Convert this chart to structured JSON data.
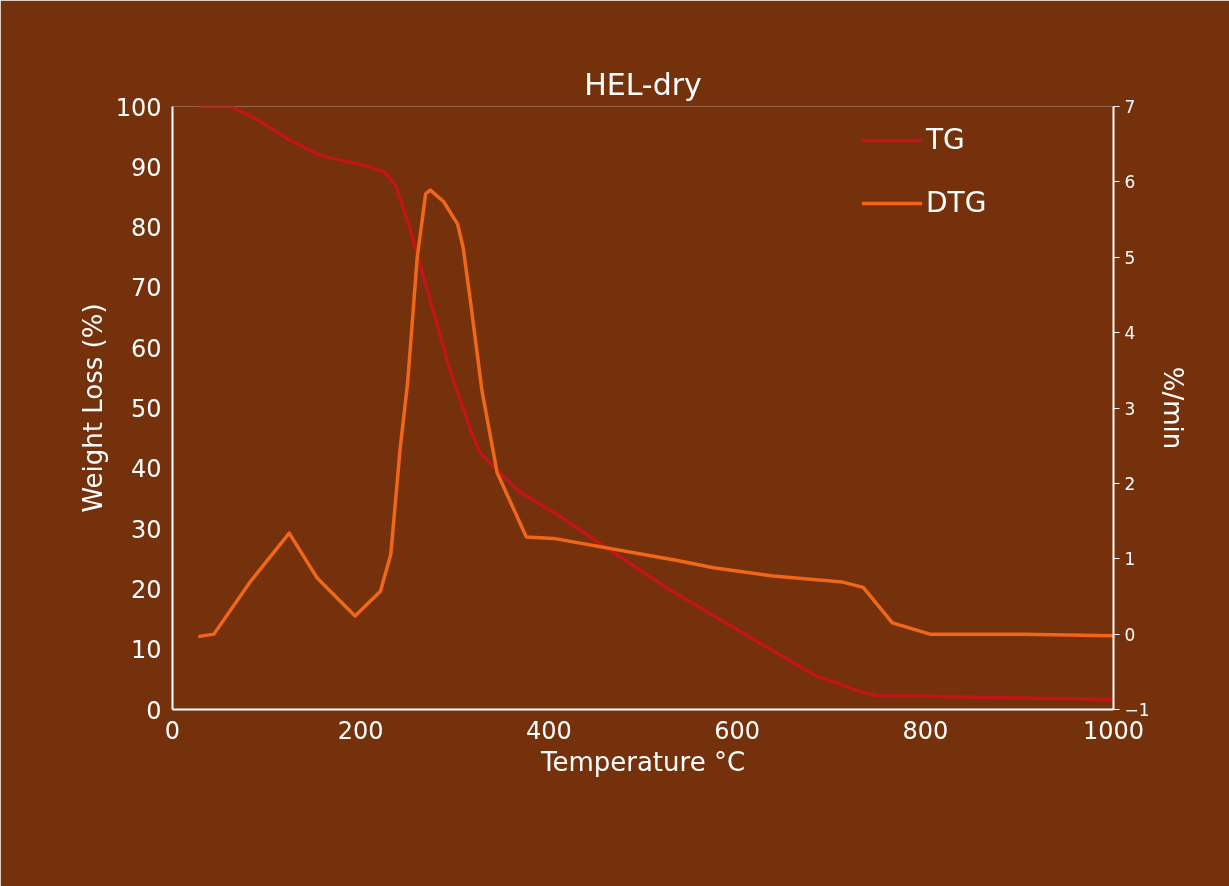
{
  "chart_data": {
    "type": "line",
    "title": "HEL-dry",
    "xlabel": "Temperature °C",
    "ylabel": "Weight Loss (%)",
    "y2label": "%/min",
    "xlim": [
      0,
      1000
    ],
    "xticks": [
      0,
      200,
      400,
      600,
      800,
      1000
    ],
    "ylim": [
      0,
      100
    ],
    "yticks": [
      0,
      10,
      20,
      30,
      40,
      50,
      60,
      70,
      80,
      90,
      100
    ],
    "y2lim": [
      -1,
      7
    ],
    "y2ticks": [
      -1,
      0,
      1,
      2,
      3,
      4,
      5,
      6,
      7
    ],
    "grid": false,
    "legend": "top right",
    "marker": "none",
    "line_style": "solid",
    "series": [
      {
        "name": "TG",
        "color": "#c0161a",
        "x": [
          30,
          62,
          88,
          125,
          157,
          184,
          210,
          226,
          237,
          253,
          274,
          295,
          317,
          327,
          338,
          367,
          412,
          460,
          525,
          593,
          681,
          726,
          748,
          800,
          900,
          1000
        ],
        "values": [
          100,
          100,
          98,
          94.4,
          91.9,
          90.9,
          90,
          89,
          87,
          79.4,
          67.8,
          56.2,
          46.3,
          42.5,
          40.8,
          36.3,
          32,
          26.9,
          20.2,
          13.9,
          5.8,
          3.2,
          2.3,
          2.2,
          1.9,
          1.7
        ]
      },
      {
        "name": "DTG",
        "color": "#f0671a",
        "axis": "y2",
        "x": [
          29,
          44,
          83,
          124,
          154,
          194,
          221,
          232,
          242,
          250,
          260,
          269,
          274,
          288,
          303,
          309,
          317,
          329,
          345,
          376,
          405,
          535,
          575,
          638,
          712,
          734,
          765,
          805,
          903,
          1000
        ],
        "values": [
          -0.03,
          0.0,
          0.7,
          1.34,
          0.74,
          0.24,
          0.57,
          1.06,
          2.47,
          3.35,
          4.99,
          5.84,
          5.89,
          5.74,
          5.44,
          5.12,
          4.38,
          3.22,
          2.14,
          1.29,
          1.27,
          0.98,
          0.88,
          0.77,
          0.69,
          0.62,
          0.15,
          0.0,
          0.0,
          -0.02
        ]
      }
    ]
  }
}
